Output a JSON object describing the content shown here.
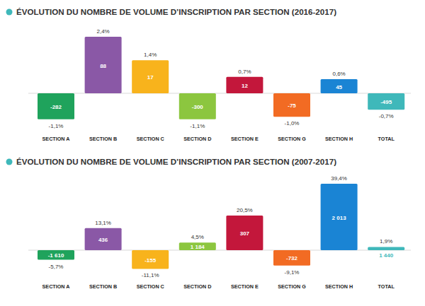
{
  "chart_data": [
    {
      "type": "bar",
      "title": "ÉVOLUTION DU NOMBRE DE VOLUME D’INSCRIPTION PAR SECTION (2016-2017)",
      "categories": [
        "SECTION A",
        "SECTION B",
        "SECTION C",
        "SECTION D",
        "SECTION E",
        "SECTION G",
        "SECTION H",
        "TOTAL"
      ],
      "values": [
        -1.1,
        2.4,
        1.4,
        -1.1,
        0.7,
        -1.0,
        0.6,
        -0.7
      ],
      "value_labels": [
        "-1,1%",
        "2,4%",
        "1,4%",
        "-1,1%",
        "0,7%",
        "-1,0%",
        "0,6%",
        "-0,7%"
      ],
      "counts": [
        -282,
        88,
        17,
        -300,
        12,
        -75,
        45,
        -495
      ],
      "count_labels": [
        "-282",
        "88",
        "17",
        "-300",
        "12",
        "-75",
        "45",
        "-495"
      ],
      "colors": [
        "#1fa35c",
        "#8a58a6",
        "#f8b31c",
        "#8cc63f",
        "#c3173b",
        "#f26b23",
        "#1a84d4",
        "#3fb8ba"
      ],
      "data_labels": true,
      "tick_labels": "x"
    },
    {
      "type": "bar",
      "title": "ÉVOLUTION DU NOMBRE DE VOLUME D’INSCRIPTION PAR SECTION (2007-2017)",
      "categories": [
        "SECTION A",
        "SECTION B",
        "SECTION C",
        "SECTION D",
        "SECTION E",
        "SECTION G",
        "SECTION H",
        "TOTAL"
      ],
      "values": [
        -5.7,
        13.1,
        -11.1,
        4.5,
        20.5,
        -9.1,
        39.4,
        1.9
      ],
      "value_labels": [
        "-5,7%",
        "13,1%",
        "-11,1%",
        "4,5%",
        "20,5%",
        "-9,1%",
        "39,4%",
        "1,9%"
      ],
      "counts": [
        -1610,
        436,
        -155,
        1184,
        307,
        -732,
        2013,
        1440
      ],
      "count_labels": [
        "-1 610",
        "436",
        "-155",
        "1 184",
        "307",
        "-732",
        "2 013",
        "1 440"
      ],
      "colors": [
        "#1fa35c",
        "#8a58a6",
        "#f8b31c",
        "#8cc63f",
        "#c3173b",
        "#f26b23",
        "#1a84d4",
        "#3fb8ba"
      ],
      "data_labels": true,
      "tick_labels": "x"
    }
  ]
}
